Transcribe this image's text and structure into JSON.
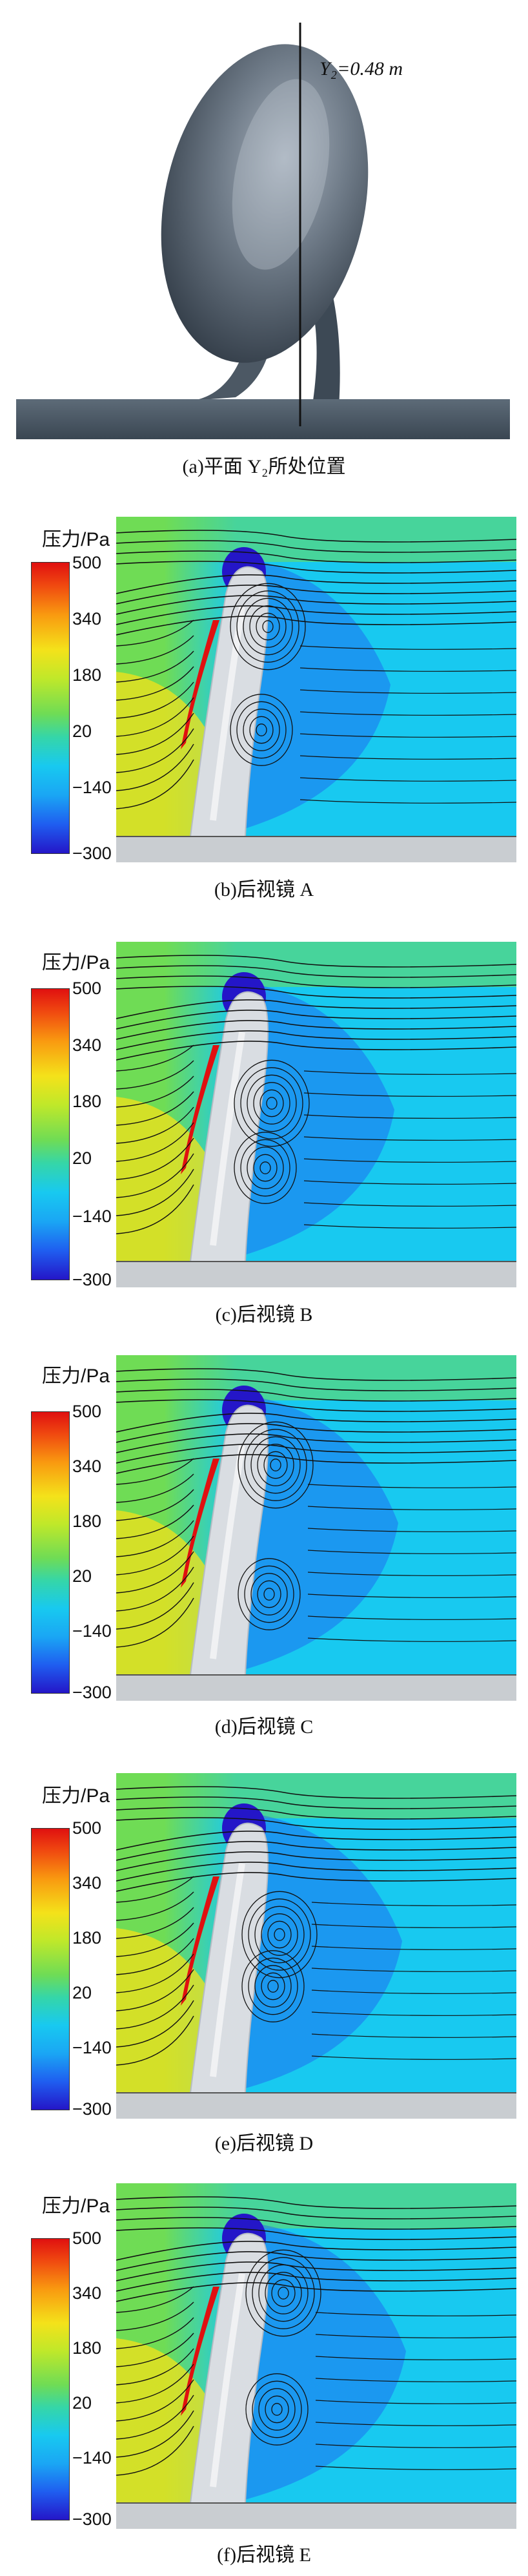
{
  "panel_a": {
    "label": "Y₂=0.48 m",
    "caption": "(a)平面 Y₂所处位置"
  },
  "colorbar": {
    "title": "压力/Pa",
    "ticks": [
      "500",
      "340",
      "180",
      "20",
      "−140",
      "−300"
    ],
    "colors": [
      "#e01010",
      "#f99a10",
      "#f4e21a",
      "#6fdc55",
      "#18c9f0",
      "#1f5ef0",
      "#2416c8"
    ]
  },
  "panels": [
    {
      "caption": "(b)后视镜 A"
    },
    {
      "caption": "(c)后视镜 B"
    },
    {
      "caption": "(d)后视镜 C"
    },
    {
      "caption": "(e)后视镜 D"
    },
    {
      "caption": "(f)后视镜 E"
    }
  ]
}
